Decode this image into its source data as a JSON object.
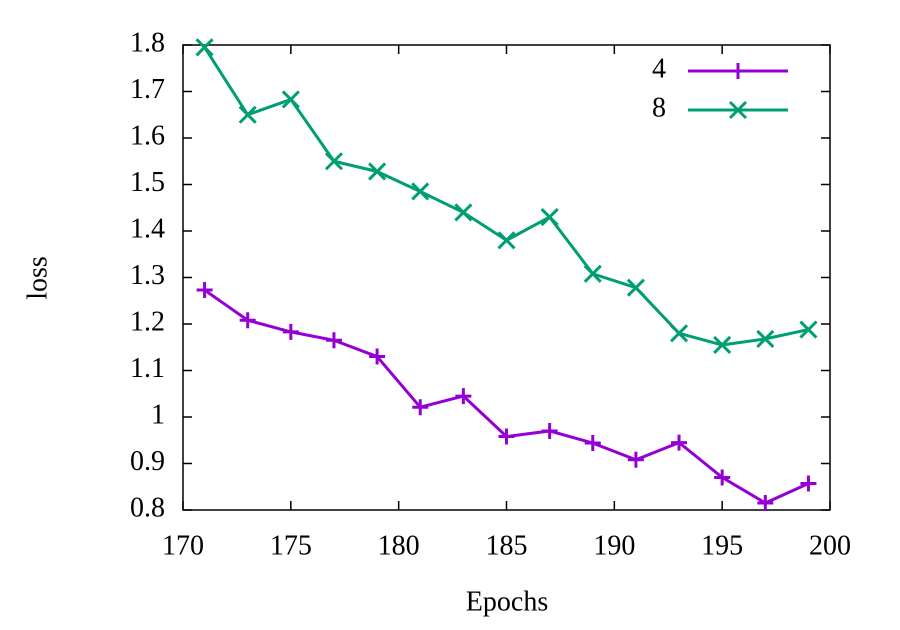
{
  "chart_data": {
    "type": "line",
    "x_label": "Epochs",
    "y_label": "loss",
    "x": [
      171,
      173,
      175,
      177,
      179,
      181,
      183,
      185,
      187,
      189,
      191,
      193,
      195,
      197,
      199
    ],
    "series": [
      {
        "name": "4",
        "color": "#9400d3",
        "marker": "plus",
        "values": [
          1.273,
          1.208,
          1.183,
          1.165,
          1.13,
          1.021,
          1.045,
          0.958,
          0.97,
          0.944,
          0.908,
          0.945,
          0.87,
          0.815,
          0.857
        ]
      },
      {
        "name": "8",
        "color": "#009e73",
        "marker": "cross",
        "values": [
          1.795,
          1.65,
          1.683,
          1.55,
          1.528,
          1.485,
          1.44,
          1.38,
          1.43,
          1.308,
          1.278,
          1.18,
          1.155,
          1.168,
          1.188
        ]
      }
    ],
    "xlim": [
      170,
      200
    ],
    "xticks": [
      170,
      175,
      180,
      185,
      190,
      195,
      200
    ],
    "ylim": [
      0.8,
      1.8
    ],
    "yticks": [
      0.8,
      0.9,
      1,
      1.1,
      1.2,
      1.3,
      1.4,
      1.5,
      1.6,
      1.7,
      1.8
    ],
    "legend": "top-right",
    "grid": false
  }
}
